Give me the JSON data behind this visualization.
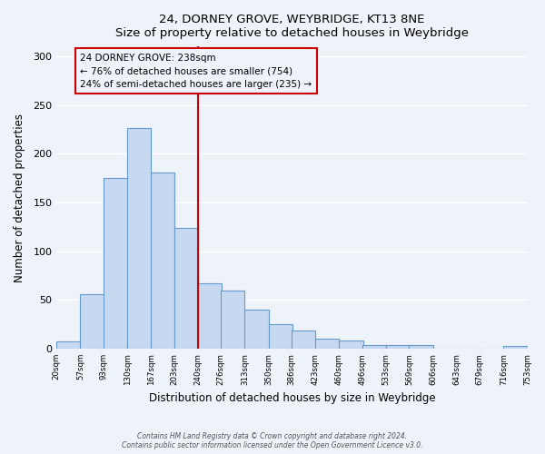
{
  "title": "24, DORNEY GROVE, WEYBRIDGE, KT13 8NE",
  "subtitle": "Size of property relative to detached houses in Weybridge",
  "xlabel": "Distribution of detached houses by size in Weybridge",
  "ylabel": "Number of detached properties",
  "bin_labels": [
    "20sqm",
    "57sqm",
    "93sqm",
    "130sqm",
    "167sqm",
    "203sqm",
    "240sqm",
    "276sqm",
    "313sqm",
    "350sqm",
    "386sqm",
    "423sqm",
    "460sqm",
    "496sqm",
    "533sqm",
    "569sqm",
    "606sqm",
    "643sqm",
    "679sqm",
    "716sqm",
    "753sqm"
  ],
  "bar_values": [
    7,
    56,
    175,
    226,
    181,
    124,
    67,
    60,
    40,
    25,
    19,
    10,
    8,
    4,
    4,
    4,
    0,
    0,
    0,
    3
  ],
  "bar_left_edges": [
    20,
    57,
    93,
    130,
    167,
    203,
    240,
    276,
    313,
    350,
    386,
    423,
    460,
    496,
    533,
    569,
    606,
    643,
    679,
    716
  ],
  "bin_width": 37,
  "vline_x": 240,
  "bar_color": "#c6d9f0",
  "bar_edge_color": "#6699cc",
  "vline_color": "#cc0000",
  "annotation_text": "24 DORNEY GROVE: 238sqm\n← 76% of detached houses are smaller (754)\n24% of semi-detached houses are larger (235) →",
  "annotation_box_edge": "#cc0000",
  "ylim": [
    0,
    310
  ],
  "yticks": [
    0,
    50,
    100,
    150,
    200,
    250,
    300
  ],
  "footnote1": "Contains HM Land Registry data © Crown copyright and database right 2024.",
  "footnote2": "Contains public sector information licensed under the Open Government Licence v3.0.",
  "bg_color": "#eef2f9",
  "grid_color": "#ffffff"
}
